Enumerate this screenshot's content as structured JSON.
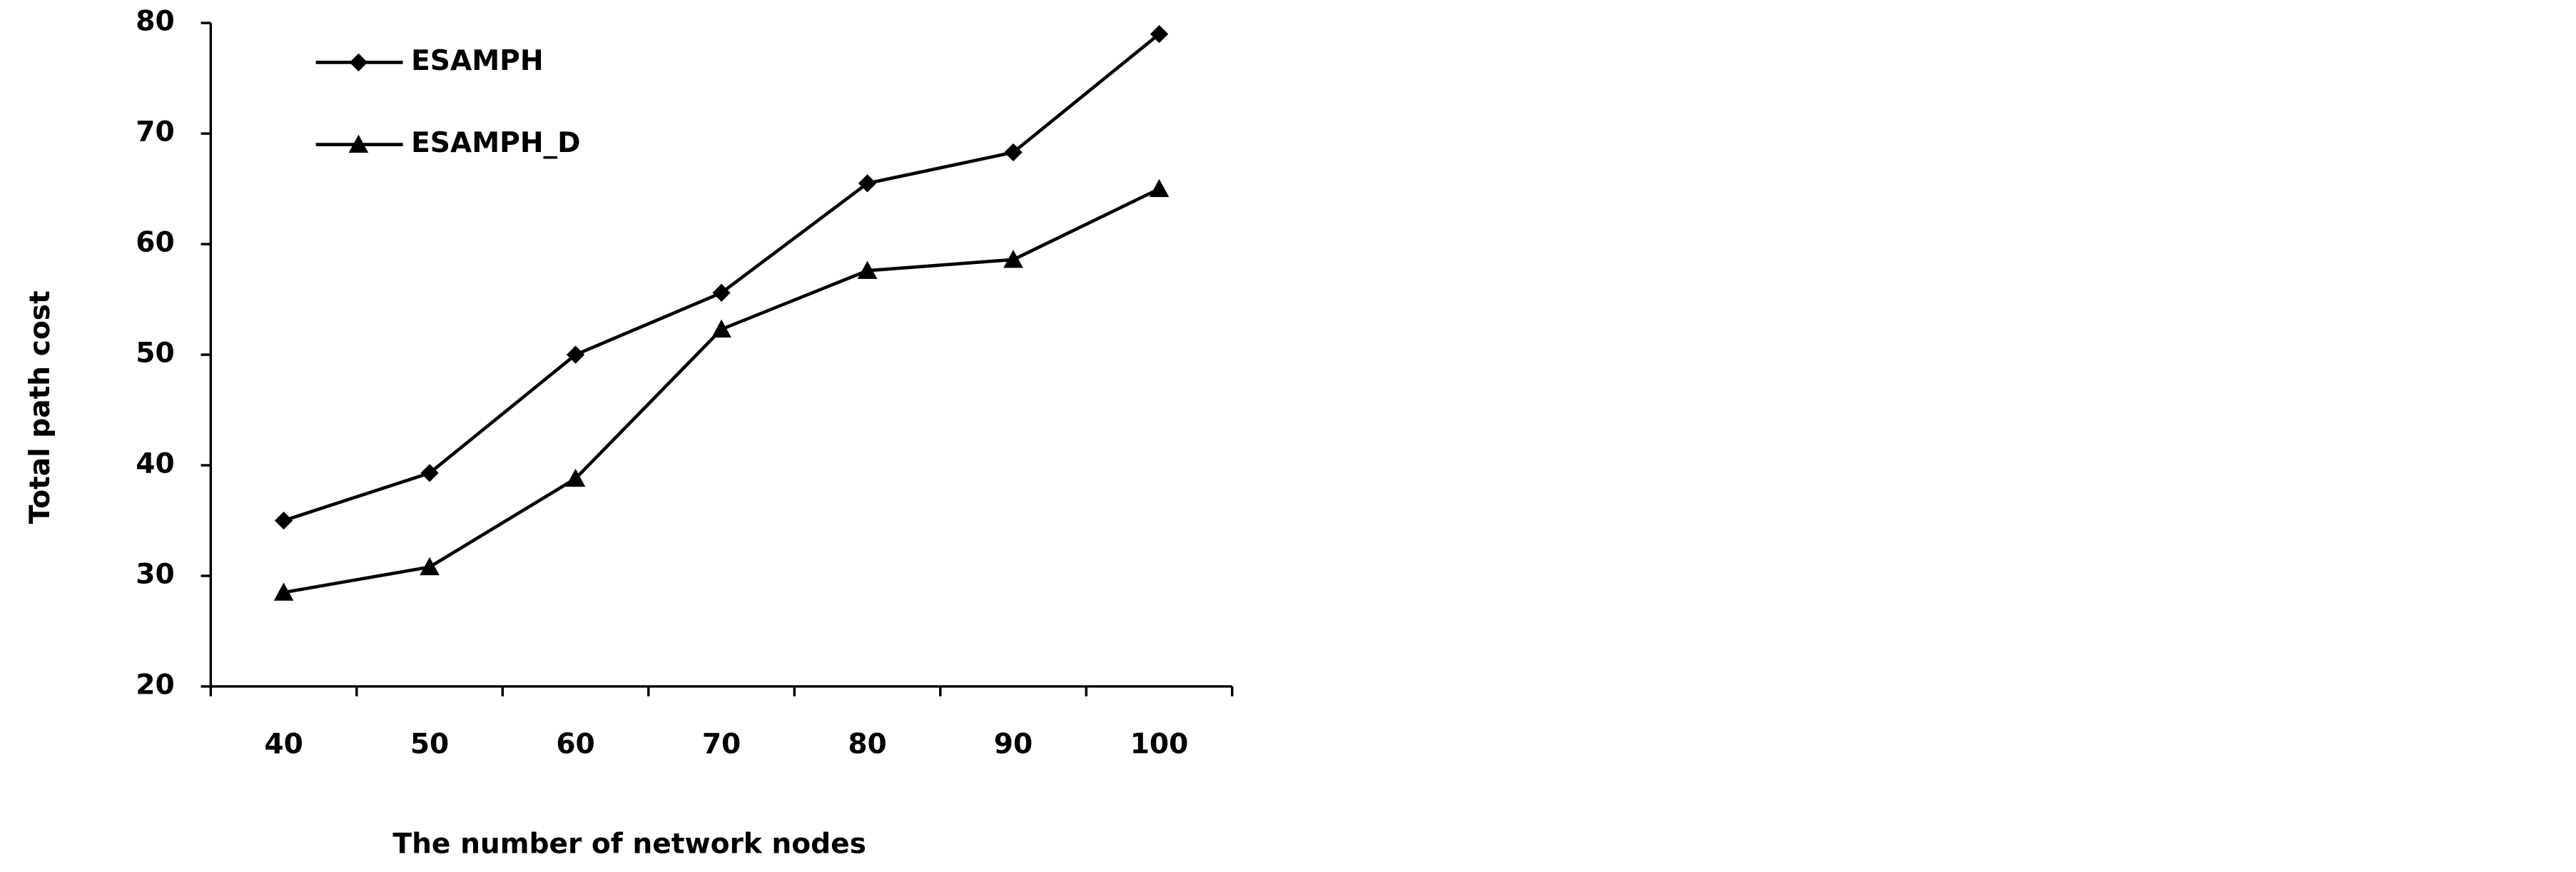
{
  "chart_data": {
    "type": "line",
    "x_label": "The number of network nodes",
    "y_label": "Total path cost",
    "categories": [
      "40",
      "50",
      "60",
      "70",
      "80",
      "90",
      "100"
    ],
    "series": [
      {
        "name": "ESAMPH",
        "color": "#000000",
        "marker": "diamond",
        "values": [
          35,
          39.3,
          50,
          55.6,
          65.5,
          68.3,
          79
        ]
      },
      {
        "name": "ESAMPH_D",
        "color": "#000000",
        "marker": "triangle",
        "values": [
          28.5,
          30.8,
          38.8,
          52.3,
          57.6,
          58.6,
          65
        ]
      }
    ],
    "ylim": [
      20,
      80
    ],
    "yticks": [
      20,
      30,
      40,
      50,
      60,
      70,
      80
    ],
    "grid": false,
    "legend": "top-left"
  }
}
